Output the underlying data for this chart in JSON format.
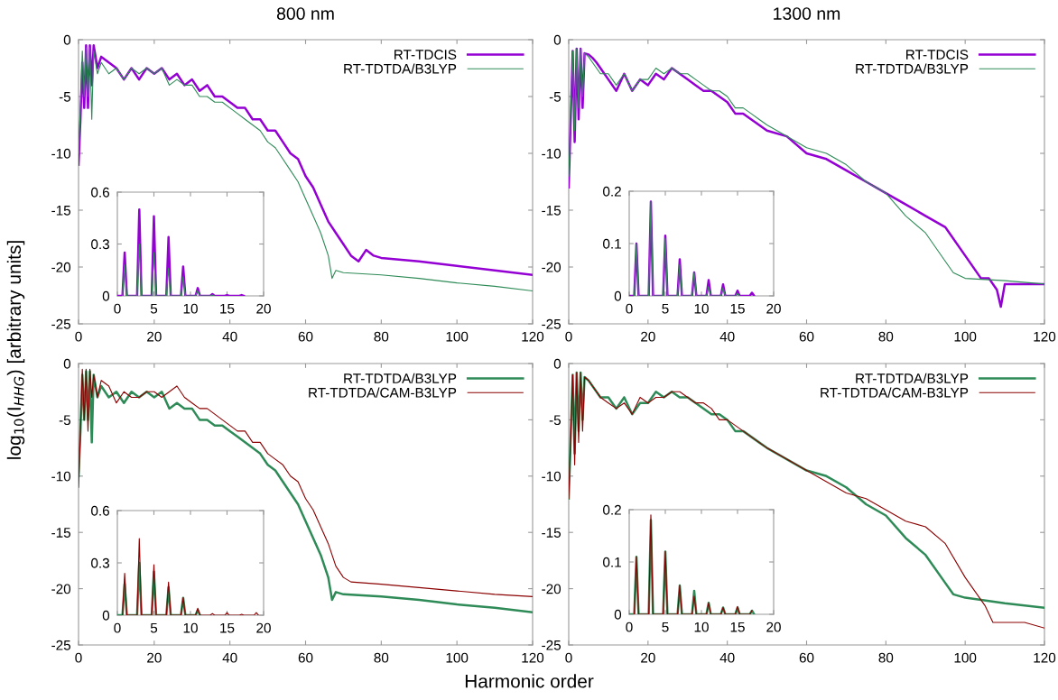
{
  "chart_data": [
    {
      "type": "line",
      "title": "800 nm",
      "ylabel": "log$_{10}$(I$_{HHG}$) [arbitrary units]",
      "xlim": [
        0,
        120
      ],
      "xticks": [
        0,
        20,
        40,
        60,
        80,
        100,
        120
      ],
      "ylim": [
        -25,
        0
      ],
      "yticks": [
        -25,
        -20,
        -15,
        -10,
        -5,
        0
      ],
      "legend": "top right",
      "line_style": "solid",
      "series": [
        {
          "name": "RT-TDCIS",
          "color": "#9400d3",
          "x": [
            0,
            0.5,
            1,
            1.5,
            2,
            2.5,
            3,
            3.5,
            4,
            5,
            6,
            8,
            10,
            12,
            14,
            16,
            18,
            20,
            22,
            24,
            26,
            28,
            30,
            32,
            34,
            36,
            38,
            40,
            42,
            44,
            46,
            48,
            50,
            52,
            54,
            56,
            58,
            60,
            62,
            64,
            66,
            68,
            70,
            72,
            74,
            76,
            78,
            80,
            90,
            100,
            110,
            120
          ],
          "values": [
            -11,
            -7,
            -2,
            -6,
            -0.5,
            -6,
            -0.5,
            -4,
            -0.5,
            -2.5,
            -1.5,
            -2,
            -2.5,
            -3.5,
            -2.5,
            -3.5,
            -2.5,
            -3,
            -2.5,
            -3.5,
            -3,
            -4,
            -3.5,
            -4.5,
            -4,
            -5,
            -5,
            -5.5,
            -6,
            -6,
            -7,
            -7,
            -8,
            -8,
            -9,
            -10,
            -10.5,
            -12,
            -13,
            -14.5,
            -16,
            -17,
            -18,
            -19,
            -19.5,
            -18.5,
            -19,
            -19.2,
            -19.5,
            -19.9,
            -20.3,
            -20.7
          ]
        },
        {
          "name": "RT-TDTDA/B3LYP",
          "color": "#2e8b57",
          "x": [
            0,
            0.5,
            1,
            1.5,
            2,
            2.5,
            3,
            3.5,
            4,
            5,
            6,
            8,
            10,
            12,
            14,
            16,
            18,
            20,
            22,
            24,
            26,
            28,
            30,
            32,
            34,
            36,
            38,
            40,
            42,
            44,
            46,
            48,
            50,
            52,
            54,
            56,
            58,
            60,
            62,
            64,
            66,
            67,
            68,
            70,
            80,
            90,
            100,
            110,
            120
          ],
          "values": [
            -10,
            -6,
            -1,
            -5,
            -0.7,
            -5,
            -0.7,
            -7,
            -1,
            -3,
            -2,
            -3,
            -2.5,
            -3.5,
            -2.5,
            -3,
            -2.5,
            -3,
            -2.5,
            -4,
            -3.5,
            -4,
            -4,
            -5,
            -5,
            -5.5,
            -5.5,
            -6,
            -6.5,
            -7,
            -7.5,
            -8,
            -9,
            -9.5,
            -10.5,
            -11.5,
            -12.5,
            -14,
            -15.5,
            -17,
            -19,
            -21,
            -20.3,
            -20.5,
            -20.7,
            -21,
            -21.4,
            -21.7,
            -22.1
          ]
        }
      ]
    },
    {
      "type": "line",
      "title": "1300 nm",
      "xlim": [
        0,
        120
      ],
      "xticks": [
        0,
        20,
        40,
        60,
        80,
        100,
        120
      ],
      "ylim": [
        -25,
        0
      ],
      "yticks": [
        -25,
        -20,
        -15,
        -10,
        -5,
        0
      ],
      "legend": "top right",
      "line_style": "solid",
      "series": [
        {
          "name": "RT-TDCIS",
          "color": "#9400d3",
          "x": [
            0,
            1,
            1.5,
            2,
            2.5,
            3,
            3.5,
            4,
            5,
            6,
            7,
            8,
            10,
            12,
            14,
            16,
            18,
            20,
            22,
            24,
            26,
            28,
            30,
            32,
            34,
            36,
            38,
            40,
            42,
            44,
            46,
            48,
            50,
            55,
            60,
            65,
            70,
            75,
            80,
            85,
            90,
            95,
            100,
            104,
            106,
            108,
            109,
            110,
            115,
            120
          ],
          "values": [
            -13,
            -1,
            -9,
            -0.8,
            -7,
            -0.8,
            -6,
            -1.2,
            -1.3,
            -1.6,
            -2,
            -2.5,
            -3.5,
            -4.5,
            -3,
            -4.5,
            -3.5,
            -4,
            -3,
            -3.5,
            -2.5,
            -3,
            -3.5,
            -4,
            -4.5,
            -4.5,
            -5,
            -5.5,
            -6.5,
            -6.5,
            -7,
            -7.5,
            -8,
            -8.5,
            -10,
            -10.5,
            -11.5,
            -12.5,
            -13.5,
            -14.5,
            -15.5,
            -16.5,
            -19,
            -21,
            -21,
            -22,
            -23.5,
            -21.5,
            -21.5,
            -21.5
          ]
        },
        {
          "name": "RT-TDTDA/B3LYP",
          "color": "#2e8b57",
          "x": [
            0,
            1,
            1.5,
            2,
            2.5,
            3,
            3.5,
            4,
            5,
            6,
            8,
            10,
            12,
            14,
            16,
            18,
            20,
            22,
            24,
            26,
            28,
            30,
            32,
            34,
            36,
            38,
            40,
            42,
            44,
            46,
            48,
            50,
            55,
            60,
            65,
            70,
            75,
            80,
            85,
            90,
            95,
            97,
            100,
            110,
            120
          ],
          "values": [
            -12,
            -1,
            -8,
            -0.8,
            -6,
            -0.8,
            -5,
            -1.2,
            -1.5,
            -2,
            -3,
            -3,
            -4,
            -3,
            -4.5,
            -3.5,
            -3.5,
            -2.5,
            -3,
            -2.5,
            -3,
            -3,
            -3.5,
            -4,
            -4.5,
            -4.5,
            -5,
            -6,
            -6,
            -6.5,
            -7,
            -7.5,
            -8.5,
            -9.5,
            -10,
            -11,
            -12.5,
            -13.5,
            -15.5,
            -17,
            -19.5,
            -20.5,
            -21,
            -21.2,
            -21.5
          ]
        }
      ]
    },
    {
      "type": "line",
      "xlabel": "Harmonic order",
      "xlim": [
        0,
        120
      ],
      "xticks": [
        0,
        20,
        40,
        60,
        80,
        100,
        120
      ],
      "ylim": [
        -25,
        0
      ],
      "yticks": [
        -25,
        -20,
        -15,
        -10,
        -5,
        0
      ],
      "legend": "top right",
      "line_style": "solid",
      "series": [
        {
          "name": "RT-TDTDA/B3LYP",
          "color": "#2e8b57",
          "x": [
            0,
            0.5,
            1,
            1.5,
            2,
            2.5,
            3,
            3.5,
            4,
            5,
            6,
            8,
            10,
            12,
            14,
            16,
            18,
            20,
            22,
            24,
            26,
            28,
            30,
            32,
            34,
            36,
            38,
            40,
            42,
            44,
            46,
            48,
            50,
            52,
            54,
            56,
            58,
            60,
            62,
            64,
            66,
            67,
            68,
            70,
            80,
            90,
            100,
            110,
            120
          ],
          "values": [
            -10,
            -6,
            -1,
            -5,
            -0.7,
            -5,
            -0.7,
            -7,
            -1,
            -3,
            -2,
            -3,
            -2.5,
            -3.5,
            -2.5,
            -3,
            -2.5,
            -3,
            -2.5,
            -4,
            -3.5,
            -4,
            -4,
            -5,
            -5,
            -5.5,
            -5.5,
            -6,
            -6.5,
            -7,
            -7.5,
            -8,
            -9,
            -9.5,
            -10.5,
            -11.5,
            -12.5,
            -14,
            -15.5,
            -17,
            -19,
            -21,
            -20.3,
            -20.5,
            -20.7,
            -21,
            -21.4,
            -21.7,
            -22.1
          ]
        },
        {
          "name": "RT-TDTDA/CAM-B3LYP",
          "color": "#8b0000",
          "x": [
            0,
            0.5,
            1,
            1.5,
            2,
            2.5,
            3,
            3.5,
            4,
            5,
            6,
            8,
            10,
            12,
            14,
            16,
            18,
            20,
            22,
            24,
            26,
            28,
            30,
            32,
            34,
            36,
            38,
            40,
            42,
            44,
            46,
            48,
            50,
            52,
            54,
            56,
            58,
            60,
            62,
            64,
            66,
            68,
            70,
            72,
            80,
            90,
            100,
            110,
            120
          ],
          "values": [
            -11,
            -6,
            -0.5,
            -5,
            -0.5,
            -6,
            -0.5,
            -3,
            -1,
            -3,
            -1.5,
            -2,
            -3.5,
            -2.5,
            -3,
            -3,
            -2.5,
            -2.5,
            -3,
            -2.5,
            -2,
            -3,
            -3.5,
            -4,
            -4,
            -4.5,
            -5,
            -5.5,
            -6,
            -6,
            -7,
            -7,
            -8,
            -8.5,
            -9,
            -10,
            -10.5,
            -12,
            -13,
            -14.5,
            -16,
            -18,
            -19,
            -19.4,
            -19.6,
            -19.9,
            -20.2,
            -20.5,
            -20.7
          ]
        }
      ]
    },
    {
      "type": "line",
      "xlim": [
        0,
        120
      ],
      "xticks": [
        0,
        20,
        40,
        60,
        80,
        100,
        120
      ],
      "ylim": [
        -25,
        0
      ],
      "yticks": [
        -25,
        -20,
        -15,
        -10,
        -5,
        0
      ],
      "legend": "top right",
      "line_style": "solid",
      "series": [
        {
          "name": "RT-TDTDA/B3LYP",
          "color": "#2e8b57",
          "x": [
            0,
            1,
            1.5,
            2,
            2.5,
            3,
            3.5,
            4,
            5,
            6,
            8,
            10,
            12,
            14,
            16,
            18,
            20,
            22,
            24,
            26,
            28,
            30,
            32,
            34,
            36,
            38,
            40,
            42,
            44,
            46,
            48,
            50,
            55,
            60,
            65,
            70,
            75,
            80,
            85,
            90,
            95,
            97,
            100,
            110,
            120
          ],
          "values": [
            -12,
            -1,
            -8,
            -0.8,
            -6,
            -0.8,
            -5,
            -1.2,
            -1.5,
            -2,
            -3,
            -3,
            -4,
            -3,
            -4.5,
            -3.5,
            -3.5,
            -2.5,
            -3,
            -2.5,
            -3,
            -3,
            -3.5,
            -4,
            -4.5,
            -4.5,
            -5,
            -6,
            -6,
            -6.5,
            -7,
            -7.5,
            -8.5,
            -9.5,
            -10,
            -11,
            -12.5,
            -13.5,
            -15.5,
            -17,
            -19.5,
            -20.5,
            -20.8,
            -21.3,
            -21.7
          ]
        },
        {
          "name": "RT-TDTDA/CAM-B3LYP",
          "color": "#8b0000",
          "x": [
            0,
            1,
            1.5,
            2,
            2.5,
            3,
            3.5,
            4,
            5,
            6,
            8,
            10,
            12,
            14,
            16,
            18,
            20,
            22,
            24,
            26,
            28,
            30,
            32,
            34,
            36,
            38,
            40,
            42,
            44,
            46,
            48,
            50,
            55,
            60,
            65,
            70,
            75,
            80,
            85,
            90,
            95,
            100,
            103,
            105,
            107,
            110,
            115,
            120
          ],
          "values": [
            -12,
            -1,
            -9,
            -0.8,
            -7,
            -0.8,
            -6,
            -1.2,
            -1.5,
            -2,
            -3,
            -3.5,
            -4,
            -3.5,
            -4.5,
            -3,
            -3.5,
            -3,
            -3,
            -2.5,
            -2.5,
            -3,
            -3.5,
            -3.5,
            -4,
            -5,
            -5,
            -5.5,
            -6,
            -6.5,
            -7,
            -7.5,
            -8.5,
            -9.5,
            -10.5,
            -11.5,
            -12,
            -13,
            -14,
            -14.5,
            -16,
            -19,
            -20.5,
            -21.5,
            -23,
            -23,
            -23,
            -23.5
          ]
        }
      ]
    },
    {
      "type": "line",
      "xlim": [
        0,
        20
      ],
      "xticks": [
        0,
        5,
        10,
        15,
        20
      ],
      "ylim": [
        0,
        0.6
      ],
      "yticks": [
        0,
        0.3,
        0.6
      ],
      "line_style": "solid",
      "x": [
        0,
        0.7,
        1,
        1.3,
        2.7,
        3,
        3.3,
        4.7,
        5,
        5.3,
        6.7,
        7,
        7.3,
        8.7,
        9,
        9.3,
        10.7,
        11,
        11.3,
        12.7,
        13,
        13.3,
        14.7,
        15,
        15.3,
        16.7,
        17,
        17.3
      ],
      "series": [
        {
          "color": "#9400d3",
          "values": [
            0,
            0,
            0.25,
            0,
            0,
            0.5,
            0,
            0,
            0.46,
            0,
            0,
            0.34,
            0,
            0,
            0.17,
            0,
            0,
            0.045,
            0,
            0,
            0.01,
            0,
            0,
            0.005,
            0,
            0,
            0.005,
            0
          ]
        },
        {
          "color": "#2e8b57",
          "values": [
            null,
            0,
            0.18,
            0,
            0,
            0.3,
            0,
            0,
            0.25,
            0,
            0,
            0.16,
            0,
            0,
            0.11,
            0,
            0,
            0.03,
            0,
            0,
            0.005,
            0,
            null,
            null,
            null,
            null,
            null,
            null
          ]
        }
      ]
    },
    {
      "type": "line",
      "xlim": [
        0,
        20
      ],
      "xticks": [
        0,
        5,
        10,
        15,
        20
      ],
      "ylim": [
        0,
        0.2
      ],
      "yticks": [
        0,
        0.1,
        0.2
      ],
      "line_style": "solid",
      "x": [
        0,
        0.7,
        1,
        1.3,
        2.7,
        3,
        3.3,
        4.7,
        5,
        5.3,
        6.7,
        7,
        7.3,
        8.7,
        9,
        9.3,
        10.7,
        11,
        11.3,
        12.7,
        13,
        13.3,
        14.7,
        15,
        15.3,
        16.7,
        17,
        17.3
      ],
      "series": [
        {
          "color": "#9400d3",
          "values": [
            0,
            0,
            0.1,
            0,
            0,
            0.18,
            0,
            0,
            0.115,
            0,
            0,
            0.07,
            0,
            0,
            0.045,
            0,
            0,
            0.03,
            0,
            0,
            0.022,
            0,
            0,
            0.01,
            0,
            0,
            0.006,
            0
          ]
        },
        {
          "color": "#2e8b57",
          "values": [
            null,
            0,
            0.1,
            0,
            0,
            0.18,
            0,
            0,
            0.11,
            0,
            0,
            0.06,
            0,
            0,
            0.045,
            0,
            0,
            0.018,
            0,
            0,
            0.015,
            0,
            0,
            0.005,
            0,
            null,
            null,
            null
          ]
        }
      ]
    },
    {
      "type": "line",
      "xlim": [
        0,
        20
      ],
      "xticks": [
        0,
        5,
        10,
        15,
        20
      ],
      "ylim": [
        0,
        0.6
      ],
      "yticks": [
        0,
        0.3,
        0.6
      ],
      "line_style": "solid",
      "x": [
        0,
        0.7,
        1,
        1.3,
        2.7,
        3,
        3.3,
        4.7,
        5,
        5.3,
        6.7,
        7,
        7.3,
        8.7,
        9,
        9.3,
        10.7,
        11,
        11.3,
        12.7,
        13,
        13.3,
        14.7,
        15,
        15.3,
        16.7,
        17,
        17.3,
        18.7,
        19,
        19.3
      ],
      "series": [
        {
          "color": "#2e8b57",
          "values": [
            0,
            0,
            0.18,
            0,
            0,
            0.3,
            0,
            0,
            0.25,
            0,
            0,
            0.16,
            0,
            0,
            0.1,
            0,
            0,
            0.03,
            0,
            null,
            null,
            null,
            null,
            null,
            null,
            null,
            null,
            null,
            null,
            null,
            null
          ]
        },
        {
          "color": "#8b0000",
          "values": [
            null,
            0,
            0.24,
            0,
            0,
            0.44,
            0,
            0,
            0.29,
            0,
            0,
            0.19,
            0,
            0,
            0.1,
            0,
            0,
            0.04,
            0,
            0,
            0.01,
            0,
            0,
            0.015,
            0,
            0,
            0.005,
            0,
            0,
            0.015,
            0
          ]
        }
      ]
    },
    {
      "type": "line",
      "xlim": [
        0,
        20
      ],
      "xticks": [
        0,
        5,
        10,
        15,
        20
      ],
      "ylim": [
        0,
        0.2
      ],
      "yticks": [
        0,
        0.1,
        0.2
      ],
      "line_style": "solid",
      "x": [
        0,
        0.7,
        1,
        1.3,
        2.7,
        3,
        3.3,
        4.7,
        5,
        5.3,
        6.7,
        7,
        7.3,
        8.7,
        9,
        9.3,
        10.7,
        11,
        11.3,
        12.7,
        13,
        13.3,
        14.7,
        15,
        15.3,
        16.7,
        17,
        17.3
      ],
      "series": [
        {
          "color": "#2e8b57",
          "values": [
            0,
            0,
            0.11,
            0,
            0,
            0.18,
            0,
            0,
            0.12,
            0,
            0,
            0.055,
            0,
            0,
            0.045,
            0,
            0,
            0.022,
            0,
            0,
            0.013,
            0,
            0,
            0.013,
            0,
            0,
            0.007,
            0
          ]
        },
        {
          "color": "#8b0000",
          "values": [
            null,
            0,
            0.11,
            0,
            0,
            0.19,
            0,
            0,
            0.12,
            0,
            0,
            0.055,
            0,
            0,
            0.035,
            0,
            0,
            0.022,
            0,
            0,
            0.013,
            0,
            0,
            0.015,
            0,
            0,
            0.007,
            null
          ]
        }
      ]
    }
  ]
}
